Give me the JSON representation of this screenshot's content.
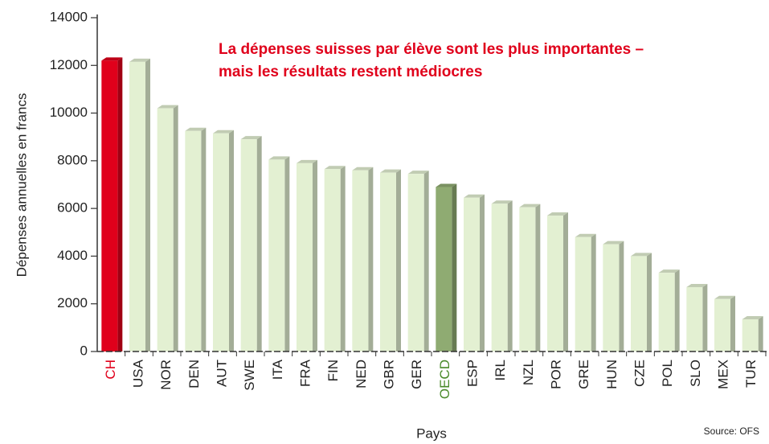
{
  "chart_data": {
    "type": "bar",
    "annotation": [
      "La dépenses suisses par élève sont les plus importantes –",
      "mais les résultats restent médiocres"
    ],
    "y_label": "Dépenses annuelles en francs",
    "x_label": "Pays",
    "source": "Source: OFS",
    "categories": [
      "CH",
      "USA",
      "NOR",
      "DEN",
      "AUT",
      "SWE",
      "ITA",
      "FRA",
      "FIN",
      "NED",
      "GBR",
      "GER",
      "OECD",
      "ESP",
      "IRL",
      "NZL",
      "POR",
      "GRE",
      "HUN",
      "CZE",
      "POL",
      "SLO",
      "MEX",
      "TUR"
    ],
    "values": [
      12200,
      12150,
      10200,
      9250,
      9150,
      8900,
      8050,
      7900,
      7650,
      7600,
      7500,
      7450,
      6900,
      6450,
      6200,
      6050,
      5700,
      4800,
      4500,
      4000,
      3300,
      2700,
      2200,
      1350
    ],
    "colors": [
      "#e0001b",
      "#e3f0d2",
      "#e3f0d2",
      "#e3f0d2",
      "#e3f0d2",
      "#e3f0d2",
      "#e3f0d2",
      "#e3f0d2",
      "#e3f0d2",
      "#e3f0d2",
      "#e3f0d2",
      "#e3f0d2",
      "#8fab72",
      "#e3f0d2",
      "#e3f0d2",
      "#e3f0d2",
      "#e3f0d2",
      "#e3f0d2",
      "#e3f0d2",
      "#e3f0d2",
      "#e3f0d2",
      "#e3f0d2",
      "#e3f0d2",
      "#e3f0d2"
    ],
    "label_colors": [
      "#e0001b",
      "#222",
      "#222",
      "#222",
      "#222",
      "#222",
      "#222",
      "#222",
      "#222",
      "#222",
      "#222",
      "#222",
      "#4a8a2a",
      "#222",
      "#222",
      "#222",
      "#222",
      "#222",
      "#222",
      "#222",
      "#222",
      "#222",
      "#222",
      "#222"
    ],
    "annotation_color": "#e0001b",
    "ylim": [
      0,
      14000
    ],
    "yticks": [
      0,
      2000,
      4000,
      6000,
      8000,
      10000,
      12000,
      14000
    ]
  }
}
